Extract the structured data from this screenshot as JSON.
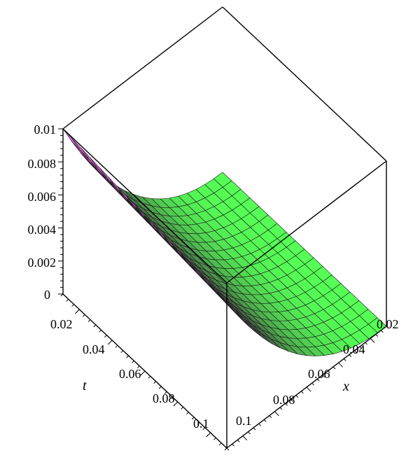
{
  "chart_data": {
    "type": "surface3d",
    "title": "",
    "xlabel": "x",
    "ylabel": "t",
    "zlabel": "",
    "x_range": [
      0.01,
      0.1
    ],
    "t_range": [
      0.01,
      0.1
    ],
    "z_range": [
      0,
      0.01
    ],
    "x_ticks": [
      "0.02",
      "0.04",
      "0.06",
      "0.08",
      "0.1"
    ],
    "t_ticks": [
      "0.02",
      "0.04",
      "0.06",
      "0.08",
      "0.1"
    ],
    "z_ticks": [
      "0",
      "0.002",
      "0.004",
      "0.006",
      "0.008",
      "0.01"
    ],
    "grid": false,
    "style": "patch mesh",
    "colors": {
      "low": "#55ff55",
      "mid": "#444444",
      "high": "#ff66ff"
    }
  }
}
